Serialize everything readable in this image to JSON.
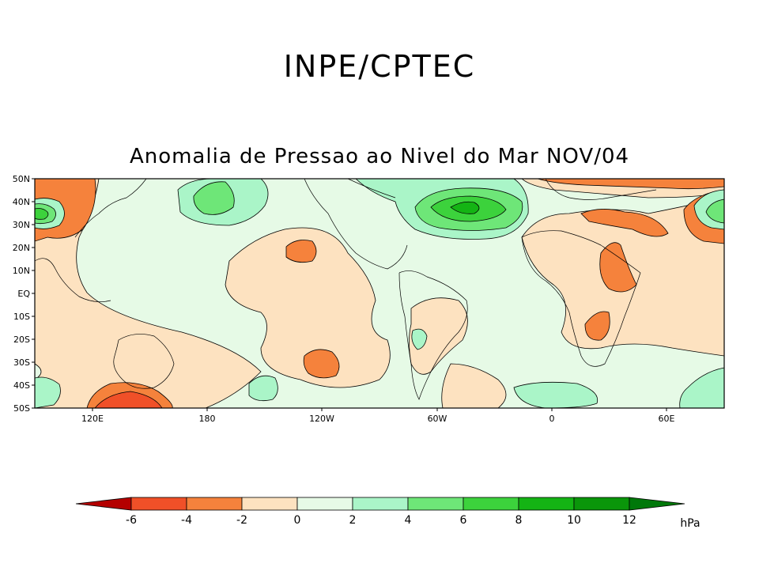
{
  "header": {
    "title": "INPE/CPTEC",
    "subtitle": "Anomalia de Pressao ao Nivel do Mar NOV/04"
  },
  "map": {
    "lat_labels": [
      "50N",
      "40N",
      "30N",
      "20N",
      "10N",
      "EQ",
      "10S",
      "20S",
      "30S",
      "40S",
      "50S"
    ],
    "lon_labels": [
      "120E",
      "180",
      "120W",
      "60W",
      "0",
      "60E"
    ]
  },
  "colorbar": {
    "tick_labels": [
      "-6",
      "-4",
      "-2",
      "0",
      "2",
      "4",
      "6",
      "8",
      "10",
      "12"
    ],
    "unit": "hPa",
    "colors": [
      "#b40000",
      "#f05028",
      "#f5823c",
      "#fde2c0",
      "#e6fae6",
      "#aaf5c8",
      "#6ee678",
      "#3cd23c",
      "#14b414",
      "#0a960a",
      "#00780a",
      "#1e6e1e"
    ]
  }
}
